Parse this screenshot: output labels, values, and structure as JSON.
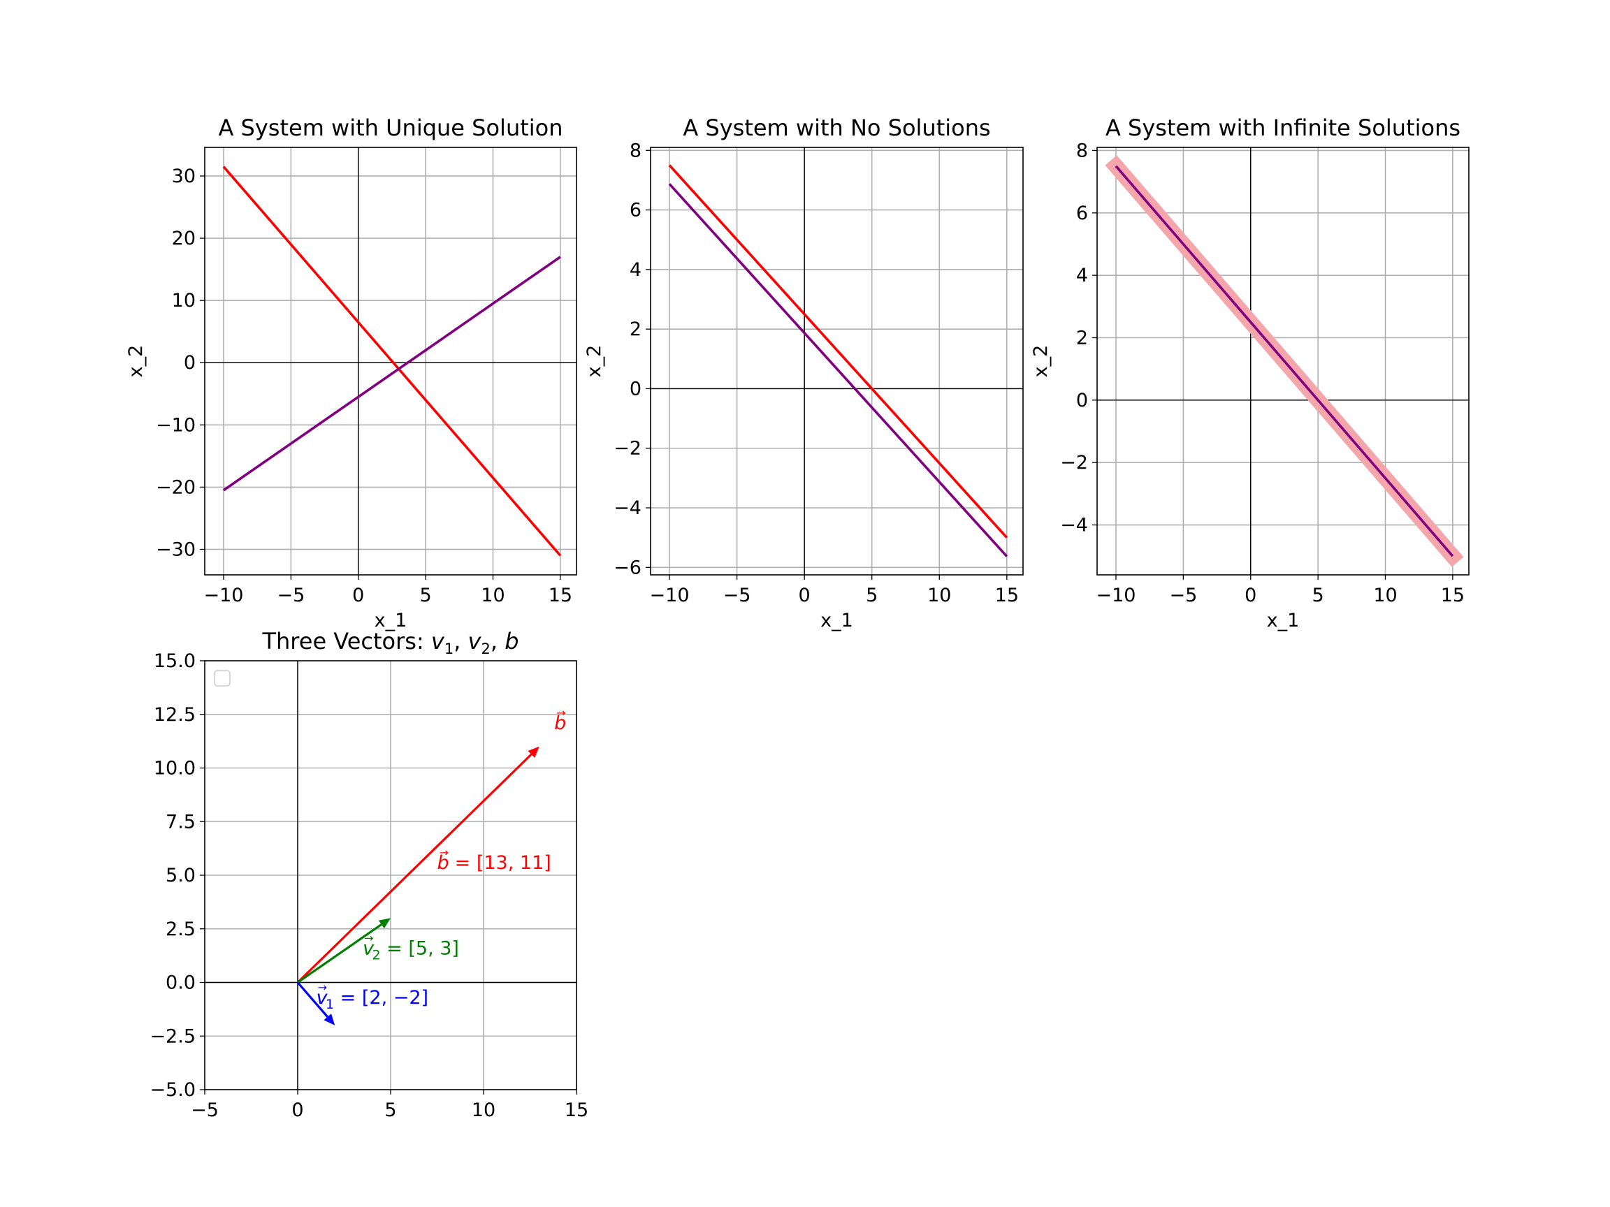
{
  "figure": {
    "background": "#ffffff"
  },
  "colors": {
    "red": "#ff0000",
    "purple": "#800080",
    "green": "#008000",
    "blue": "#0000ff",
    "grid": "#b0b0b0",
    "highlight": "#f4a6ab"
  },
  "chart_data": [
    {
      "type": "line",
      "title": "A System with Unique Solution",
      "xlabel": "x_1",
      "ylabel": "x_2",
      "xlim": [
        -11.4,
        16.2
      ],
      "ylim": [
        -34.1,
        34.6
      ],
      "xticks": [
        -10,
        -5,
        0,
        5,
        10,
        15
      ],
      "xtick_labels": [
        "−10",
        "−5",
        "0",
        "5",
        "10",
        "15"
      ],
      "yticks": [
        -30,
        -20,
        -10,
        0,
        10,
        20,
        30
      ],
      "ytick_labels": [
        "−30",
        "−20",
        "−10",
        "0",
        "10",
        "20",
        "30"
      ],
      "grid": true,
      "series": [
        {
          "color": "#ff0000",
          "x": [
            -10,
            15
          ],
          "y": [
            31.5,
            -31
          ]
        },
        {
          "color": "#800080",
          "x": [
            -10,
            15
          ],
          "y": [
            -20.5,
            17
          ]
        }
      ]
    },
    {
      "type": "line",
      "title": "A System with No Solutions",
      "xlabel": "x_1",
      "ylabel": "x_2",
      "xlim": [
        -11.4,
        16.2
      ],
      "ylim": [
        -6.25,
        8.1
      ],
      "xticks": [
        -10,
        -5,
        0,
        5,
        10,
        15
      ],
      "xtick_labels": [
        "−10",
        "−5",
        "0",
        "5",
        "10",
        "15"
      ],
      "yticks": [
        -6,
        -4,
        -2,
        0,
        2,
        4,
        6,
        8
      ],
      "ytick_labels": [
        "−6",
        "−4",
        "−2",
        "0",
        "2",
        "4",
        "6",
        "8"
      ],
      "grid": true,
      "series": [
        {
          "color": "#ff0000",
          "x": [
            -10,
            15
          ],
          "y": [
            7.5,
            -5.0
          ]
        },
        {
          "color": "#800080",
          "x": [
            -10,
            15
          ],
          "y": [
            6.87,
            -5.63
          ]
        }
      ]
    },
    {
      "type": "line",
      "title": "A System with Infinite Solutions",
      "xlabel": "x_1",
      "ylabel": "x_2",
      "xlim": [
        -11.4,
        16.2
      ],
      "ylim": [
        -5.6,
        8.1
      ],
      "xticks": [
        -10,
        -5,
        0,
        5,
        10,
        15
      ],
      "xtick_labels": [
        "−10",
        "−5",
        "0",
        "5",
        "10",
        "15"
      ],
      "yticks": [
        -4,
        -2,
        0,
        2,
        4,
        6,
        8
      ],
      "ytick_labels": [
        "−4",
        "−2",
        "0",
        "2",
        "4",
        "6",
        "8"
      ],
      "grid": true,
      "series": [
        {
          "color": "#f4a6ab",
          "x": [
            -10,
            15
          ],
          "y": [
            7.5,
            -5.0
          ],
          "style": "thick"
        },
        {
          "color": "#800080",
          "x": [
            -10,
            15
          ],
          "y": [
            7.5,
            -5.0
          ]
        }
      ]
    },
    {
      "type": "vector",
      "title": "Three Vectors: v1, v2, b",
      "title_parts": [
        "Three Vectors: ",
        "v",
        "1",
        ", ",
        "v",
        "2",
        ", ",
        "b"
      ],
      "xlim": [
        -5,
        15
      ],
      "ylim": [
        -5,
        15
      ],
      "xticks": [
        -5,
        0,
        5,
        10,
        15
      ],
      "xtick_labels": [
        "−5",
        "0",
        "5",
        "10",
        "15"
      ],
      "yticks": [
        -5,
        -2.5,
        0,
        2.5,
        5,
        7.5,
        10,
        12.5,
        15
      ],
      "ytick_labels": [
        "−5.0",
        "−2.5",
        "0.0",
        "2.5",
        "5.0",
        "7.5",
        "10.0",
        "12.5",
        "15.0"
      ],
      "grid": true,
      "legend": "top-left (empty)",
      "vectors": [
        {
          "name": "v1",
          "x": 2,
          "y": -2,
          "color": "#0000ff",
          "label_sym": "v",
          "label_sub": "1",
          "label_eq": " = [2, −2]",
          "label_at": [
            1,
            -1
          ]
        },
        {
          "name": "v2",
          "x": 5,
          "y": 3,
          "color": "#008000",
          "label_sym": "v",
          "label_sub": "2",
          "label_eq": " = [5, 3]",
          "label_at": [
            3.5,
            1.3
          ]
        },
        {
          "name": "b",
          "x": 13,
          "y": 11,
          "color": "#ff0000",
          "label_sym": "b",
          "label_sub": "",
          "label_eq": " = [13, 11]",
          "label_at": [
            7.5,
            5.3
          ]
        }
      ],
      "tip_label": {
        "sym": "b",
        "color": "#ff0000",
        "at": [
          13.8,
          11.8
        ]
      }
    }
  ]
}
